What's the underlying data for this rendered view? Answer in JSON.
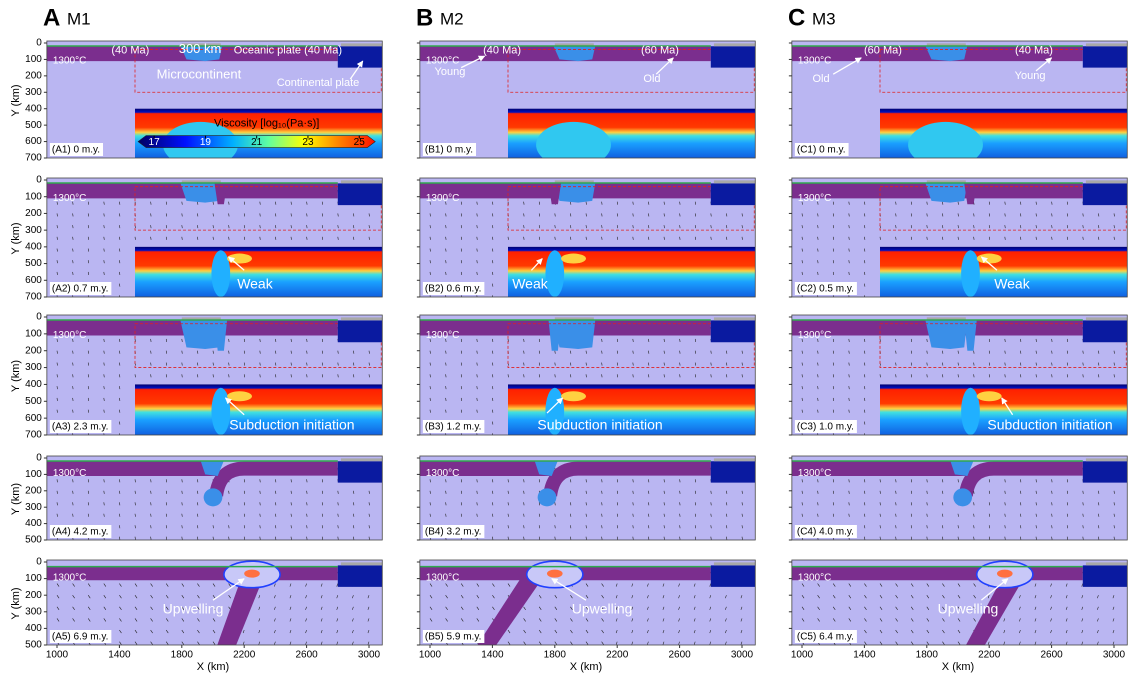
{
  "columns": [
    {
      "letter": "A",
      "model": "M1",
      "panels": [
        {
          "label": "(A1) 0 m.y.",
          "temperature": "1300°C",
          "notes": [
            "(40 Ma)",
            "300 km",
            "Oceanic plate (40 Ma)",
            "Microcontinent",
            "Continental plate"
          ]
        },
        {
          "label": "(A2) 0.7 m.y.",
          "temperature": "1300°C",
          "notes": [
            "Weak"
          ]
        },
        {
          "label": "(A3) 2.3 m.y.",
          "temperature": "1300°C",
          "notes": [
            "Subduction initiation"
          ]
        },
        {
          "label": "(A4) 4.2 m.y.",
          "temperature": "1300°C"
        },
        {
          "label": "(A5) 6.9 m.y.",
          "temperature": "1300°C",
          "notes": [
            "Upwelling"
          ]
        }
      ]
    },
    {
      "letter": "B",
      "model": "M2",
      "panels": [
        {
          "label": "(B1) 0 m.y.",
          "temperature": "1300°C",
          "notes": [
            "(40 Ma)",
            "Young",
            "(60 Ma)",
            "Old"
          ]
        },
        {
          "label": "(B2) 0.6 m.y.",
          "temperature": "1300°C",
          "notes": [
            "Weak"
          ]
        },
        {
          "label": "(B3) 1.2 m.y.",
          "temperature": "1300°C",
          "notes": [
            "Subduction initiation"
          ]
        },
        {
          "label": "(B4) 3.2 m.y.",
          "temperature": "1300°C"
        },
        {
          "label": "(B5) 5.9 m.y.",
          "temperature": "1300°C",
          "notes": [
            "Upwelling"
          ]
        }
      ]
    },
    {
      "letter": "C",
      "model": "M3",
      "panels": [
        {
          "label": "(C1) 0 m.y.",
          "temperature": "1300°C",
          "notes": [
            "(60 Ma)",
            "Old",
            "(40 Ma)",
            "Young"
          ]
        },
        {
          "label": "(C2) 0.5 m.y.",
          "temperature": "1300°C",
          "notes": [
            "Weak"
          ]
        },
        {
          "label": "(C3) 1.0 m.y.",
          "temperature": "1300°C",
          "notes": [
            "Subduction initiation"
          ]
        },
        {
          "label": "(C4) 4.0 m.y.",
          "temperature": "1300°C"
        },
        {
          "label": "(C5) 6.4 m.y.",
          "temperature": "1300°C",
          "notes": [
            "Upwelling"
          ]
        }
      ]
    }
  ],
  "colorbar": {
    "title": "Viscosity [log₁₀(Pa·s)]",
    "ticks": [
      17,
      19,
      21,
      23,
      25
    ]
  },
  "y_axis": {
    "label": "Y (km)",
    "ticks_full": [
      0,
      100,
      200,
      300,
      400,
      500,
      600,
      700
    ],
    "ticks_short": [
      0,
      100,
      200,
      300,
      400,
      500
    ]
  },
  "x_axis": {
    "label": "X (km)",
    "ticks": [
      1000,
      1400,
      1800,
      2200,
      2600,
      3000
    ]
  }
}
